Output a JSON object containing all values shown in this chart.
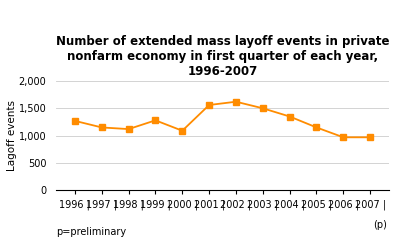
{
  "x_values": [
    1996,
    1997,
    1998,
    1999,
    2000,
    2001,
    2002,
    2003,
    2004,
    2005,
    2006,
    2007
  ],
  "values": [
    1270,
    1150,
    1120,
    1280,
    1090,
    1560,
    1620,
    1500,
    1350,
    1150,
    970,
    970
  ],
  "line_color": "#FF8C00",
  "marker_color": "#FF8C00",
  "marker": "s",
  "title_line1": "Number of extended mass layoff events in private",
  "title_line2": "nonfarm economy in first quarter of each year,",
  "title_line3": "1996-2007",
  "ylabel": "Lagoff events",
  "ylim": [
    0,
    2000
  ],
  "yticks": [
    0,
    500,
    1000,
    1500,
    2000
  ],
  "ytick_labels": [
    "0",
    "500",
    "1,000",
    "1,500",
    "2,000"
  ],
  "xtick_labels": [
    "1996 |",
    "1997 |",
    "1998 |",
    "1999 |",
    "2000 |",
    "2001 |",
    "2002 |",
    "2003 |",
    "2004 |",
    "2005 |",
    "2006 |",
    "2007 |"
  ],
  "footnote": "p=preliminary",
  "footnote2": "(p)",
  "background_color": "#ffffff",
  "plot_bg_color": "#ffffff",
  "grid_color": "#cccccc",
  "title_fontsize": 8.5,
  "axis_fontsize": 7.5,
  "tick_fontsize": 7,
  "footnote_fontsize": 7
}
